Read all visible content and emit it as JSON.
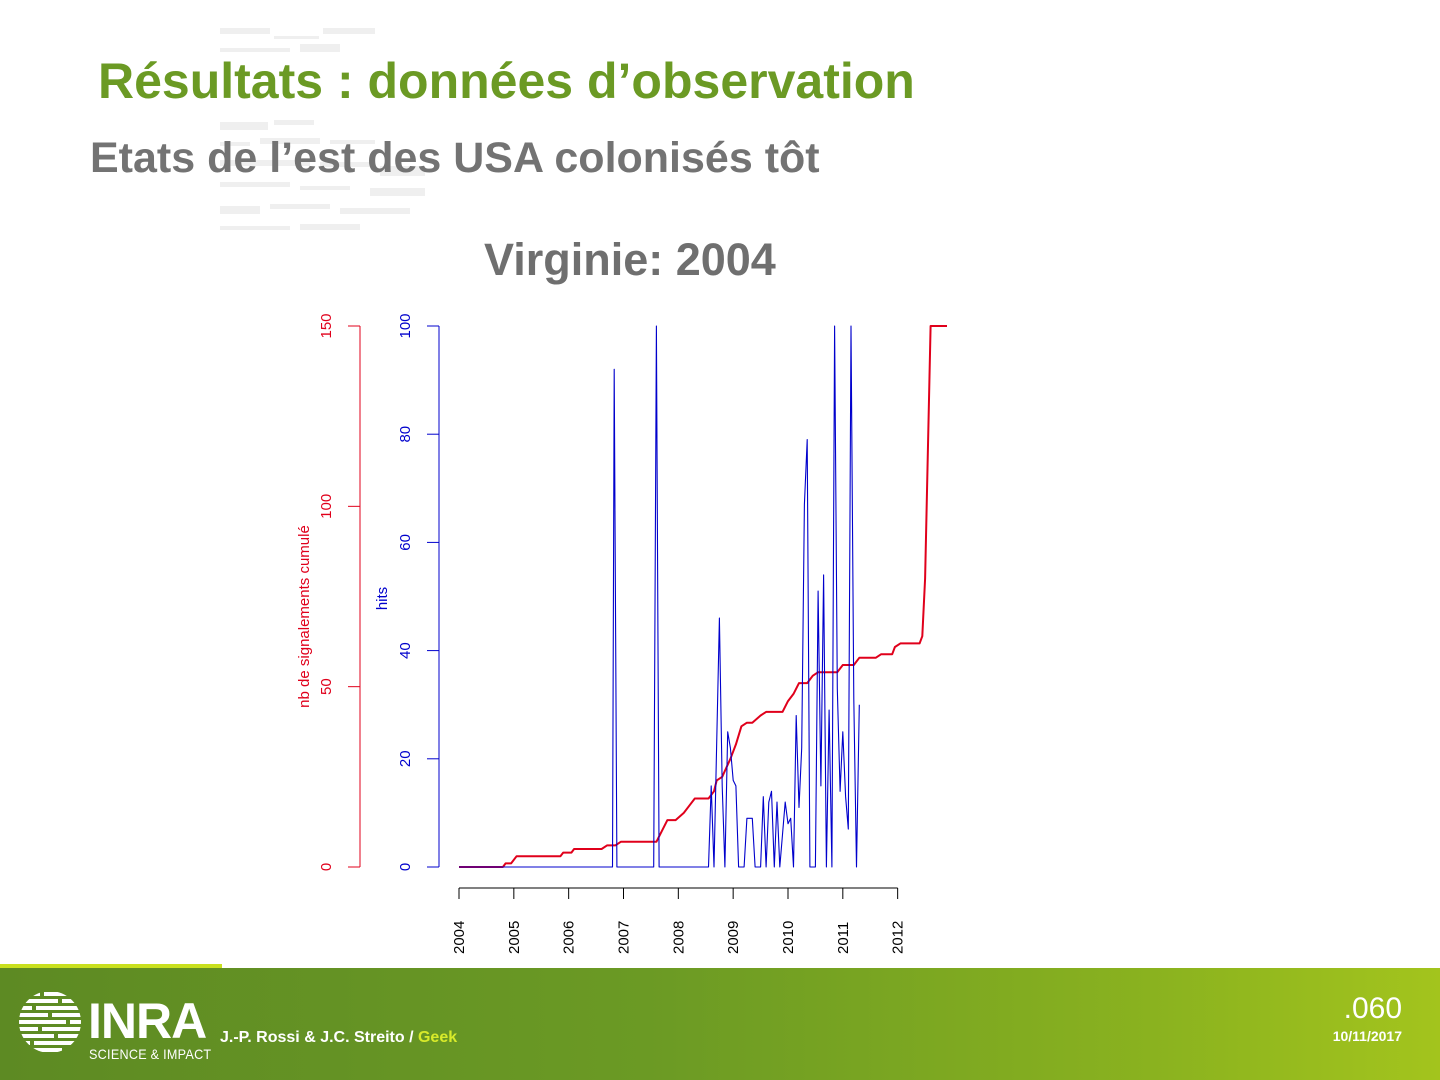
{
  "slide": {
    "title": "Résultats : données d’observation",
    "subtitle": "Etats de l’est des USA colonisés tôt",
    "chart_heading": "Virginie: 2004"
  },
  "footer": {
    "logo_text": "INRA",
    "logo_sub": "SCIENCE & IMPACT",
    "authors": "J.-P. Rossi & J.C. Streito / ",
    "authors_highlight": "Geek",
    "slide_number": ".060",
    "date": "10/11/2017"
  },
  "colors": {
    "title_green": "#6b9a24",
    "subtitle_gray": "#737373",
    "cumulative_red": "#e0001b",
    "hits_blue": "#0000cc"
  },
  "chart_data": {
    "type": "line",
    "title": "Virginie: 2004",
    "x": {
      "tick_labels": [
        "2004",
        "2005",
        "2006",
        "2007",
        "2008",
        "2009",
        "2010",
        "2011",
        "2012"
      ],
      "range": [
        2004.0,
        2012.9
      ]
    },
    "y_left": {
      "label": "nb de signalements cumulé",
      "range": [
        0,
        150
      ],
      "ticks": [
        0,
        50,
        100,
        150
      ]
    },
    "y_right": {
      "label": "hits",
      "range": [
        0,
        100
      ],
      "ticks": [
        0,
        20,
        40,
        60,
        80,
        100
      ]
    },
    "grid": false,
    "series": [
      {
        "name": "nb de signalements cumulé",
        "axis": "left",
        "color": "#e0001b",
        "points": [
          [
            2004.0,
            0
          ],
          [
            2004.8,
            0
          ],
          [
            2004.85,
            1
          ],
          [
            2004.95,
            1
          ],
          [
            2005.05,
            3
          ],
          [
            2005.85,
            3
          ],
          [
            2005.9,
            4
          ],
          [
            2006.05,
            4
          ],
          [
            2006.1,
            5
          ],
          [
            2006.6,
            5
          ],
          [
            2006.7,
            6
          ],
          [
            2006.85,
            6
          ],
          [
            2006.95,
            7
          ],
          [
            2007.6,
            7
          ],
          [
            2007.7,
            10
          ],
          [
            2007.8,
            13
          ],
          [
            2007.95,
            13
          ],
          [
            2008.1,
            15
          ],
          [
            2008.2,
            17
          ],
          [
            2008.3,
            19
          ],
          [
            2008.55,
            19
          ],
          [
            2008.65,
            21
          ],
          [
            2008.7,
            24
          ],
          [
            2008.8,
            25
          ],
          [
            2008.95,
            30
          ],
          [
            2009.05,
            34
          ],
          [
            2009.15,
            39
          ],
          [
            2009.25,
            40
          ],
          [
            2009.35,
            40
          ],
          [
            2009.5,
            42
          ],
          [
            2009.6,
            43
          ],
          [
            2009.9,
            43
          ],
          [
            2010.0,
            46
          ],
          [
            2010.1,
            48
          ],
          [
            2010.2,
            51
          ],
          [
            2010.35,
            51
          ],
          [
            2010.45,
            53
          ],
          [
            2010.55,
            54
          ],
          [
            2010.9,
            54
          ],
          [
            2011.0,
            56
          ],
          [
            2011.2,
            56
          ],
          [
            2011.3,
            58
          ],
          [
            2011.6,
            58
          ],
          [
            2011.7,
            59
          ],
          [
            2011.9,
            59
          ],
          [
            2011.95,
            61
          ],
          [
            2012.05,
            62
          ],
          [
            2012.4,
            62
          ],
          [
            2012.45,
            64
          ],
          [
            2012.5,
            80
          ],
          [
            2012.6,
            150
          ],
          [
            2012.9,
            150
          ]
        ]
      },
      {
        "name": "hits",
        "axis": "right",
        "color": "#0000cc",
        "points": [
          [
            2004.0,
            0
          ],
          [
            2006.8,
            0
          ],
          [
            2006.83,
            92
          ],
          [
            2006.88,
            0
          ],
          [
            2007.55,
            0
          ],
          [
            2007.6,
            100
          ],
          [
            2007.65,
            0
          ],
          [
            2008.55,
            0
          ],
          [
            2008.6,
            15
          ],
          [
            2008.65,
            0
          ],
          [
            2008.75,
            46
          ],
          [
            2008.8,
            15
          ],
          [
            2008.85,
            0
          ],
          [
            2008.9,
            25
          ],
          [
            2008.95,
            22
          ],
          [
            2009.0,
            16
          ],
          [
            2009.05,
            15
          ],
          [
            2009.1,
            0
          ],
          [
            2009.2,
            0
          ],
          [
            2009.25,
            9
          ],
          [
            2009.35,
            9
          ],
          [
            2009.4,
            0
          ],
          [
            2009.5,
            0
          ],
          [
            2009.55,
            13
          ],
          [
            2009.6,
            0
          ],
          [
            2009.65,
            12
          ],
          [
            2009.7,
            14
          ],
          [
            2009.75,
            0
          ],
          [
            2009.8,
            12
          ],
          [
            2009.85,
            0
          ],
          [
            2009.9,
            6
          ],
          [
            2009.95,
            12
          ],
          [
            2010.0,
            8
          ],
          [
            2010.05,
            9
          ],
          [
            2010.1,
            0
          ],
          [
            2010.15,
            28
          ],
          [
            2010.2,
            11
          ],
          [
            2010.25,
            22
          ],
          [
            2010.3,
            67
          ],
          [
            2010.35,
            79
          ],
          [
            2010.4,
            0
          ],
          [
            2010.5,
            0
          ],
          [
            2010.55,
            51
          ],
          [
            2010.6,
            15
          ],
          [
            2010.65,
            54
          ],
          [
            2010.7,
            0
          ],
          [
            2010.75,
            29
          ],
          [
            2010.8,
            0
          ],
          [
            2010.85,
            100
          ],
          [
            2010.9,
            33
          ],
          [
            2010.95,
            14
          ],
          [
            2011.0,
            25
          ],
          [
            2011.05,
            13
          ],
          [
            2011.1,
            7
          ],
          [
            2011.15,
            100
          ],
          [
            2011.2,
            31
          ],
          [
            2011.25,
            0
          ],
          [
            2011.3,
            30
          ]
        ]
      }
    ]
  }
}
